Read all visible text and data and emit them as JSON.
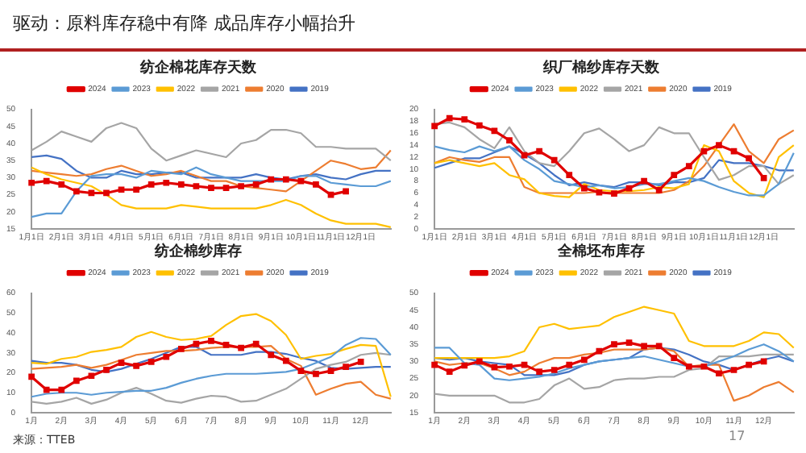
{
  "chart_data": [
    {
      "type": "line",
      "title": "纺企棉花库存天数",
      "annotations": [
        "驱动：原料库存稳中有降 成品库存小幅抬升"
      ],
      "legend": "top",
      "grid": false,
      "categories": [
        "1月1日",
        null,
        "2月1日",
        null,
        "3月1日",
        null,
        "4月1日",
        null,
        "5月1日",
        null,
        "6月1日",
        null,
        "7月1日",
        null,
        "8月1日",
        null,
        "9月1日",
        null,
        "10月1日",
        null,
        "11月1日",
        null,
        "12月1日",
        null,
        null
      ],
      "ylim": [
        15,
        50
      ],
      "yticks": [
        15,
        20,
        25,
        30,
        35,
        40,
        45,
        50
      ],
      "series": [
        {
          "name": "2019",
          "color": "#4472c4",
          "marker": "none",
          "values": [
            36,
            36.5,
            35.5,
            32,
            30,
            30,
            32,
            31,
            31,
            31.5,
            31.5,
            30,
            30,
            30,
            30,
            31,
            30,
            29.5,
            30.5,
            31,
            30,
            29.5,
            31,
            32,
            32
          ]
        },
        {
          "name": "2020",
          "color": "#ed7d31",
          "marker": "none",
          "values": [
            32,
            31.5,
            31,
            30.5,
            31,
            32.5,
            33.5,
            32,
            30.5,
            31,
            32,
            30.5,
            29,
            29,
            27.5,
            27,
            26.5,
            26,
            29,
            32,
            35,
            34,
            32.5,
            33,
            38
          ]
        },
        {
          "name": "2021",
          "color": "#a5a5a5",
          "marker": "none",
          "values": [
            38,
            40.5,
            43.5,
            42,
            40.5,
            44.5,
            46,
            44.5,
            38.5,
            35,
            36.5,
            38,
            37,
            36,
            40,
            41,
            44,
            44,
            43,
            39,
            39,
            38.5,
            38.5,
            38.5,
            35
          ]
        },
        {
          "name": "2022",
          "color": "#ffc000",
          "marker": "none",
          "values": [
            33,
            31,
            29.5,
            28.5,
            27.5,
            25,
            22,
            21,
            21,
            21,
            22,
            21.5,
            21,
            21,
            21,
            21,
            22,
            23.5,
            22,
            19.5,
            17.5,
            16.5,
            16.5,
            16.5,
            15.5
          ]
        },
        {
          "name": "2023",
          "color": "#5b9bd5",
          "marker": "none",
          "values": [
            18.5,
            19.5,
            19.5,
            26,
            30.5,
            31,
            31,
            30,
            32,
            31.5,
            31,
            33,
            31,
            30,
            29,
            29,
            29,
            29,
            30.5,
            30.5,
            28.5,
            28,
            27.5,
            27.5,
            29
          ]
        },
        {
          "name": "2024",
          "color": "#e00000",
          "marker": "square",
          "values": [
            28.5,
            29,
            28,
            26,
            25.5,
            25.5,
            26.5,
            26.5,
            28,
            28.5,
            28,
            27.5,
            27,
            27,
            27.5,
            28,
            29.5,
            29.5,
            29,
            28,
            25,
            26,
            null,
            null,
            null
          ]
        }
      ]
    },
    {
      "type": "line",
      "title": "织厂棉纱库存天数",
      "legend": "top",
      "grid": false,
      "categories": [
        "1月1日",
        null,
        "2月1日",
        null,
        "3月1日",
        null,
        "4月1日",
        null,
        "5月1日",
        null,
        "6月1日",
        null,
        "7月1日",
        null,
        "8月1日",
        null,
        "9月1日",
        null,
        "10月1日",
        null,
        "11月1日",
        null,
        "12月1日",
        null,
        null
      ],
      "ylim": [
        0,
        20
      ],
      "yticks": [
        0,
        2,
        4,
        6,
        8,
        10,
        12,
        14,
        16,
        18,
        20
      ],
      "series": [
        {
          "name": "2019",
          "color": "#4472c4",
          "marker": "none",
          "values": [
            10.2,
            11,
            11.8,
            11.8,
            12.8,
            13.8,
            12.5,
            11,
            9,
            7.3,
            7.8,
            7.3,
            7,
            7.8,
            7.8,
            7.3,
            7.8,
            7.8,
            8.5,
            11.5,
            11,
            11,
            10.5,
            9.8,
            9.8
          ]
        },
        {
          "name": "2020",
          "color": "#ed7d31",
          "marker": "none",
          "values": [
            11,
            12,
            11.5,
            11.2,
            12,
            12,
            7,
            6,
            6,
            6,
            6,
            6.2,
            6,
            6,
            6,
            6,
            6.5,
            8,
            10.5,
            14,
            17.5,
            13,
            11,
            15,
            16.5
          ]
        },
        {
          "name": "2021",
          "color": "#a5a5a5",
          "marker": "none",
          "values": [
            17.5,
            17.8,
            17,
            15,
            13.5,
            17,
            13,
            11,
            10.5,
            13,
            16,
            16.8,
            15,
            13,
            14,
            17,
            16,
            16,
            12,
            8.2,
            9,
            10.5,
            10.5,
            7.5,
            9
          ]
        },
        {
          "name": "2022",
          "color": "#ffc000",
          "marker": "none",
          "values": [
            11,
            11.5,
            11,
            10.5,
            11,
            9,
            8.3,
            6,
            5.5,
            5.3,
            7.5,
            6.5,
            6.3,
            6.3,
            6.5,
            7,
            6.8,
            7.5,
            14,
            13,
            8,
            6,
            5.3,
            12,
            14
          ]
        },
        {
          "name": "2023",
          "color": "#5b9bd5",
          "marker": "none",
          "values": [
            13.8,
            13.2,
            12.8,
            13.8,
            13,
            13.8,
            11.5,
            10,
            8,
            7.5,
            7,
            7.3,
            6.8,
            7,
            7.5,
            7.5,
            8,
            8.5,
            8,
            7,
            6.2,
            5.6,
            5.6,
            7.5,
            12.7
          ]
        },
        {
          "name": "2024",
          "color": "#e00000",
          "marker": "square",
          "values": [
            17.2,
            18.5,
            18.3,
            17.3,
            16.4,
            14.8,
            12.3,
            13,
            11.5,
            9,
            6.8,
            6.1,
            5.9,
            6.8,
            8,
            6.5,
            9,
            10.5,
            13,
            14,
            13,
            11.8,
            8.5,
            null,
            null
          ]
        }
      ]
    },
    {
      "type": "line",
      "title": "纺企棉纱库存",
      "annotations": [
        "来源：TTEB"
      ],
      "legend": "top",
      "grid": false,
      "categories": [
        "1月",
        null,
        "2月",
        null,
        "3月",
        null,
        "4月",
        null,
        "5月",
        null,
        "6月",
        null,
        "7月",
        null,
        "8月",
        null,
        "9月",
        null,
        "10月",
        null,
        "11月",
        null,
        "12月",
        null,
        null
      ],
      "ylim": [
        0,
        60
      ],
      "yticks": [
        0,
        10,
        20,
        30,
        40,
        50,
        60
      ],
      "series": [
        {
          "name": "2019",
          "color": "#4472c4",
          "marker": "none",
          "values": [
            26,
            25,
            25,
            24,
            21.5,
            20.5,
            22,
            24.5,
            27,
            30,
            33,
            33,
            29,
            29,
            29,
            30.5,
            30.5,
            29.5,
            27.5,
            26,
            22.5,
            22,
            22.5,
            23,
            23
          ]
        },
        {
          "name": "2020",
          "color": "#ed7d31",
          "marker": "none",
          "values": [
            22,
            22.5,
            23,
            24,
            22.5,
            24,
            26.5,
            29,
            30,
            31,
            31,
            31.5,
            32.5,
            33,
            33,
            33,
            33.5,
            27,
            23.5,
            9,
            12,
            14.5,
            15.5,
            9,
            7
          ]
        },
        {
          "name": "2021",
          "color": "#a5a5a5",
          "marker": "none",
          "values": [
            5.5,
            4.5,
            5.5,
            7.5,
            4.5,
            6.5,
            10,
            12.5,
            9.5,
            6,
            5,
            7,
            8.5,
            8,
            5.5,
            6,
            9,
            12,
            17,
            22,
            24,
            25.5,
            29,
            30,
            29
          ]
        },
        {
          "name": "2022",
          "color": "#ffc000",
          "marker": "none",
          "values": [
            25,
            24.5,
            27,
            28,
            30.5,
            31.5,
            33,
            38,
            40.5,
            38,
            36.5,
            37,
            38.5,
            44,
            48.5,
            49.5,
            46,
            39,
            27,
            28.5,
            29.5,
            32,
            34,
            33.5,
            8
          ]
        },
        {
          "name": "2023",
          "color": "#5b9bd5",
          "marker": "none",
          "values": [
            8,
            9.5,
            10,
            10,
            9,
            10,
            10.5,
            11,
            11,
            12.5,
            15,
            17,
            18.5,
            19.5,
            19.5,
            19.5,
            20,
            20.5,
            22,
            25,
            28,
            34,
            37.5,
            37,
            29
          ]
        },
        {
          "name": "2024",
          "color": "#e00000",
          "marker": "square",
          "values": [
            18,
            11.5,
            11.5,
            16,
            18.5,
            21.5,
            25,
            23.5,
            25.5,
            28,
            32,
            34.5,
            36,
            34,
            32.5,
            34.5,
            29,
            26,
            21,
            19.5,
            21,
            23,
            25.5,
            null,
            null
          ]
        }
      ]
    },
    {
      "type": "line",
      "title": "全棉坯布库存",
      "annotations": [
        "17"
      ],
      "legend": "top",
      "grid": false,
      "categories": [
        "1月",
        null,
        "2月",
        null,
        "3月",
        null,
        "4月",
        null,
        "5月",
        null,
        "6月",
        null,
        "7月",
        null,
        "8月",
        null,
        "9月",
        null,
        "10月",
        null,
        "11月",
        null,
        "12月",
        null,
        null
      ],
      "ylim": [
        15,
        50
      ],
      "yticks": [
        15,
        20,
        25,
        30,
        35,
        40,
        45,
        50
      ],
      "series": [
        {
          "name": "2019",
          "color": "#4472c4",
          "marker": "none",
          "values": [
            31,
            30.5,
            31,
            30,
            29.5,
            29,
            26,
            26,
            26,
            27,
            29,
            30,
            30.5,
            31,
            33.5,
            34,
            33.5,
            32,
            30,
            29,
            27.5,
            29,
            30.5,
            31.5,
            30
          ]
        },
        {
          "name": "2020",
          "color": "#ed7d31",
          "marker": "none",
          "values": [
            30,
            29,
            29.5,
            29.5,
            28,
            26,
            27,
            29.5,
            31,
            31,
            32,
            32.5,
            33.5,
            33.5,
            33.5,
            34,
            33,
            28.5,
            29,
            29,
            18.5,
            20,
            22.5,
            24,
            21
          ]
        },
        {
          "name": "2021",
          "color": "#a5a5a5",
          "marker": "none",
          "values": [
            20.5,
            20,
            20,
            20,
            20,
            18,
            18,
            19,
            23,
            25,
            22,
            22.5,
            24.5,
            25,
            25,
            25.5,
            25.5,
            27.5,
            28,
            31.5,
            31.5,
            31.5,
            32,
            32,
            32
          ]
        },
        {
          "name": "2022",
          "color": "#ffc000",
          "marker": "none",
          "values": [
            31,
            31,
            31,
            31,
            31,
            31.5,
            33,
            40,
            41,
            39.5,
            40,
            40.5,
            43,
            44.5,
            46,
            45,
            44,
            36,
            34.5,
            34.5,
            34.5,
            36,
            38.5,
            38,
            34
          ]
        },
        {
          "name": "2023",
          "color": "#5b9bd5",
          "marker": "none",
          "values": [
            34,
            34,
            29.5,
            29,
            25,
            24.5,
            25,
            25.5,
            26.5,
            28,
            29,
            30,
            30.5,
            31,
            31.5,
            30.5,
            29.5,
            28.5,
            28.5,
            30,
            31.5,
            33.5,
            35,
            33,
            30
          ]
        },
        {
          "name": "2024",
          "color": "#e00000",
          "marker": "square",
          "values": [
            29,
            27,
            28.8,
            30,
            28.3,
            28.5,
            29,
            27,
            27.5,
            29,
            30.5,
            33,
            35,
            35.5,
            34.5,
            34.5,
            31,
            28.5,
            28.5,
            26.5,
            27.5,
            29,
            30,
            null,
            null
          ]
        }
      ]
    }
  ]
}
